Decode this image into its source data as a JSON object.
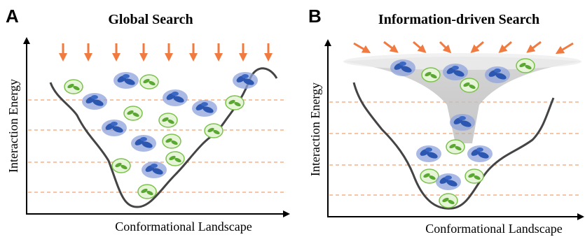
{
  "panels": [
    {
      "label": "A",
      "title": "Global Search",
      "y_axis_label": "Interaction Energy",
      "x_axis_label": "Conformational Landscape"
    },
    {
      "label": "B",
      "title": "Information-driven Search",
      "y_axis_label": "Interaction Energy",
      "x_axis_label": "Conformational Landscape"
    }
  ]
}
